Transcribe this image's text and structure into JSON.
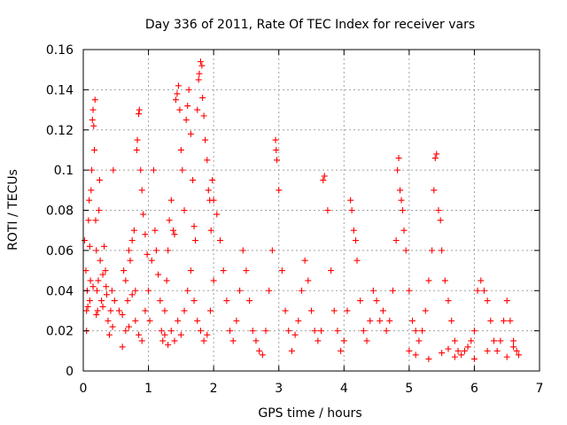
{
  "chart_data": {
    "type": "scatter",
    "title": "Day 336 of 2011, Rate Of TEC Index for receiver vars",
    "xlabel": "GPS time / hours",
    "ylabel": "ROTI / TECUs",
    "xlim": [
      0,
      7
    ],
    "ylim": [
      0,
      0.16
    ],
    "xticks": [
      0,
      1,
      2,
      3,
      4,
      5,
      6,
      7
    ],
    "xtick_labels": [
      "0",
      "1",
      "2",
      "3",
      "4",
      "5",
      "6",
      "7"
    ],
    "yticks": [
      0,
      0.02,
      0.04,
      0.06,
      0.08,
      0.1,
      0.12,
      0.14,
      0.16
    ],
    "ytick_labels": [
      "0",
      "0.02",
      "0.04",
      "0.06",
      "0.08",
      "0.1",
      "0.12",
      "0.14",
      "0.16"
    ],
    "grid": true,
    "marker": "plus",
    "color": "#ff0000",
    "series": [
      {
        "name": "",
        "points": [
          [
            0.02,
            0.065
          ],
          [
            0.04,
            0.05
          ],
          [
            0.05,
            0.02
          ],
          [
            0.06,
            0.04
          ],
          [
            0.07,
            0.032
          ],
          [
            0.08,
            0.075
          ],
          [
            0.09,
            0.085
          ],
          [
            0.1,
            0.062
          ],
          [
            0.11,
            0.045
          ],
          [
            0.12,
            0.09
          ],
          [
            0.13,
            0.1
          ],
          [
            0.14,
            0.125
          ],
          [
            0.15,
            0.13
          ],
          [
            0.16,
            0.122
          ],
          [
            0.17,
            0.11
          ],
          [
            0.18,
            0.135
          ],
          [
            0.19,
            0.075
          ],
          [
            0.2,
            0.06
          ],
          [
            0.21,
            0.04
          ],
          [
            0.22,
            0.03
          ],
          [
            0.23,
            0.045
          ],
          [
            0.24,
            0.08
          ],
          [
            0.25,
            0.095
          ],
          [
            0.26,
            0.055
          ],
          [
            0.28,
            0.035
          ],
          [
            0.3,
            0.048
          ],
          [
            0.32,
            0.062
          ],
          [
            0.34,
            0.05
          ],
          [
            0.36,
            0.038
          ],
          [
            0.38,
            0.025
          ],
          [
            0.4,
            0.018
          ],
          [
            0.42,
            0.03
          ],
          [
            0.44,
            0.04
          ],
          [
            0.46,
            0.1
          ],
          [
            0.48,
            0.035
          ],
          [
            0.05,
            0.03
          ],
          [
            0.1,
            0.035
          ],
          [
            0.15,
            0.042
          ],
          [
            0.2,
            0.028
          ],
          [
            0.3,
            0.032
          ],
          [
            0.35,
            0.042
          ],
          [
            0.45,
            0.022
          ],
          [
            0.55,
            0.03
          ],
          [
            0.6,
            0.028
          ],
          [
            0.62,
            0.05
          ],
          [
            0.65,
            0.045
          ],
          [
            0.68,
            0.035
          ],
          [
            0.7,
            0.06
          ],
          [
            0.72,
            0.055
          ],
          [
            0.75,
            0.065
          ],
          [
            0.78,
            0.07
          ],
          [
            0.8,
            0.04
          ],
          [
            0.82,
            0.11
          ],
          [
            0.83,
            0.115
          ],
          [
            0.85,
            0.128
          ],
          [
            0.86,
            0.13
          ],
          [
            0.88,
            0.1
          ],
          [
            0.9,
            0.09
          ],
          [
            0.92,
            0.078
          ],
          [
            0.95,
            0.068
          ],
          [
            0.98,
            0.058
          ],
          [
            0.6,
            0.012
          ],
          [
            0.65,
            0.02
          ],
          [
            0.7,
            0.022
          ],
          [
            0.75,
            0.038
          ],
          [
            0.8,
            0.025
          ],
          [
            0.85,
            0.018
          ],
          [
            0.9,
            0.015
          ],
          [
            0.95,
            0.03
          ],
          [
            1.0,
            0.04
          ],
          [
            1.02,
            0.025
          ],
          [
            1.05,
            0.055
          ],
          [
            1.08,
            0.1
          ],
          [
            1.1,
            0.07
          ],
          [
            1.12,
            0.06
          ],
          [
            1.15,
            0.048
          ],
          [
            1.18,
            0.035
          ],
          [
            1.2,
            0.02
          ],
          [
            1.22,
            0.015
          ],
          [
            1.25,
            0.03
          ],
          [
            1.28,
            0.045
          ],
          [
            1.3,
            0.06
          ],
          [
            1.32,
            0.075
          ],
          [
            1.35,
            0.085
          ],
          [
            1.38,
            0.07
          ],
          [
            1.4,
            0.068
          ],
          [
            1.42,
            0.135
          ],
          [
            1.44,
            0.138
          ],
          [
            1.46,
            0.142
          ],
          [
            1.48,
            0.13
          ],
          [
            1.5,
            0.11
          ],
          [
            1.52,
            0.1
          ],
          [
            1.55,
            0.08
          ],
          [
            1.58,
            0.125
          ],
          [
            1.6,
            0.132
          ],
          [
            1.62,
            0.14
          ],
          [
            1.65,
            0.118
          ],
          [
            1.68,
            0.095
          ],
          [
            1.7,
            0.072
          ],
          [
            1.72,
            0.065
          ],
          [
            1.75,
            0.13
          ],
          [
            1.77,
            0.145
          ],
          [
            1.78,
            0.148
          ],
          [
            1.8,
            0.154
          ],
          [
            1.82,
            0.152
          ],
          [
            1.83,
            0.136
          ],
          [
            1.85,
            0.127
          ],
          [
            1.87,
            0.115
          ],
          [
            1.9,
            0.105
          ],
          [
            1.92,
            0.09
          ],
          [
            1.94,
            0.085
          ],
          [
            1.96,
            0.07
          ],
          [
            1.98,
            0.095
          ],
          [
            2.0,
            0.085
          ],
          [
            1.25,
            0.018
          ],
          [
            1.3,
            0.013
          ],
          [
            1.35,
            0.02
          ],
          [
            1.4,
            0.015
          ],
          [
            1.45,
            0.025
          ],
          [
            1.5,
            0.018
          ],
          [
            1.55,
            0.03
          ],
          [
            1.6,
            0.04
          ],
          [
            1.65,
            0.05
          ],
          [
            1.7,
            0.035
          ],
          [
            1.75,
            0.025
          ],
          [
            1.8,
            0.02
          ],
          [
            1.85,
            0.015
          ],
          [
            1.9,
            0.018
          ],
          [
            1.95,
            0.03
          ],
          [
            2.0,
            0.045
          ],
          [
            2.05,
            0.078
          ],
          [
            2.1,
            0.065
          ],
          [
            2.15,
            0.05
          ],
          [
            2.2,
            0.035
          ],
          [
            2.25,
            0.02
          ],
          [
            2.3,
            0.015
          ],
          [
            2.35,
            0.025
          ],
          [
            2.4,
            0.04
          ],
          [
            2.45,
            0.06
          ],
          [
            2.5,
            0.05
          ],
          [
            2.55,
            0.035
          ],
          [
            2.6,
            0.02
          ],
          [
            2.65,
            0.015
          ],
          [
            2.7,
            0.01
          ],
          [
            2.75,
            0.008
          ],
          [
            2.8,
            0.02
          ],
          [
            2.85,
            0.04
          ],
          [
            2.9,
            0.06
          ],
          [
            2.95,
            0.115
          ],
          [
            2.96,
            0.11
          ],
          [
            2.97,
            0.105
          ],
          [
            3.0,
            0.09
          ],
          [
            3.05,
            0.05
          ],
          [
            3.1,
            0.03
          ],
          [
            3.15,
            0.02
          ],
          [
            3.2,
            0.01
          ],
          [
            3.25,
            0.018
          ],
          [
            3.3,
            0.025
          ],
          [
            3.35,
            0.04
          ],
          [
            3.4,
            0.055
          ],
          [
            3.45,
            0.045
          ],
          [
            3.5,
            0.03
          ],
          [
            3.55,
            0.02
          ],
          [
            3.6,
            0.015
          ],
          [
            3.65,
            0.02
          ],
          [
            3.68,
            0.095
          ],
          [
            3.7,
            0.097
          ],
          [
            3.75,
            0.08
          ],
          [
            3.8,
            0.05
          ],
          [
            3.85,
            0.03
          ],
          [
            3.9,
            0.02
          ],
          [
            3.95,
            0.01
          ],
          [
            4.0,
            0.015
          ],
          [
            4.05,
            0.03
          ],
          [
            4.1,
            0.085
          ],
          [
            4.12,
            0.08
          ],
          [
            4.15,
            0.07
          ],
          [
            4.18,
            0.065
          ],
          [
            4.2,
            0.055
          ],
          [
            4.25,
            0.035
          ],
          [
            4.3,
            0.02
          ],
          [
            4.35,
            0.015
          ],
          [
            4.4,
            0.025
          ],
          [
            4.45,
            0.04
          ],
          [
            4.5,
            0.035
          ],
          [
            4.55,
            0.025
          ],
          [
            4.6,
            0.03
          ],
          [
            4.65,
            0.02
          ],
          [
            4.7,
            0.025
          ],
          [
            4.75,
            0.04
          ],
          [
            4.8,
            0.065
          ],
          [
            4.82,
            0.1
          ],
          [
            4.84,
            0.106
          ],
          [
            4.86,
            0.09
          ],
          [
            4.88,
            0.085
          ],
          [
            4.9,
            0.08
          ],
          [
            4.92,
            0.07
          ],
          [
            4.95,
            0.06
          ],
          [
            5.0,
            0.04
          ],
          [
            5.05,
            0.025
          ],
          [
            5.1,
            0.02
          ],
          [
            5.15,
            0.015
          ],
          [
            5.2,
            0.02
          ],
          [
            5.25,
            0.03
          ],
          [
            5.3,
            0.045
          ],
          [
            5.35,
            0.06
          ],
          [
            5.38,
            0.09
          ],
          [
            5.4,
            0.106
          ],
          [
            5.42,
            0.108
          ],
          [
            5.45,
            0.08
          ],
          [
            5.48,
            0.075
          ],
          [
            5.5,
            0.06
          ],
          [
            5.55,
            0.045
          ],
          [
            5.6,
            0.035
          ],
          [
            5.65,
            0.025
          ],
          [
            5.7,
            0.015
          ],
          [
            5.75,
            0.01
          ],
          [
            5.8,
            0.008
          ],
          [
            5.85,
            0.01
          ],
          [
            5.9,
            0.012
          ],
          [
            5.95,
            0.015
          ],
          [
            6.0,
            0.02
          ],
          [
            6.05,
            0.04
          ],
          [
            6.1,
            0.045
          ],
          [
            6.15,
            0.04
          ],
          [
            6.2,
            0.035
          ],
          [
            6.25,
            0.025
          ],
          [
            6.3,
            0.015
          ],
          [
            6.35,
            0.01
          ],
          [
            6.4,
            0.015
          ],
          [
            6.45,
            0.025
          ],
          [
            6.5,
            0.035
          ],
          [
            6.55,
            0.025
          ],
          [
            6.6,
            0.015
          ],
          [
            6.65,
            0.01
          ],
          [
            6.68,
            0.008
          ],
          [
            5.0,
            0.01
          ],
          [
            5.1,
            0.008
          ],
          [
            5.3,
            0.006
          ],
          [
            5.5,
            0.009
          ],
          [
            5.6,
            0.011
          ],
          [
            5.7,
            0.007
          ],
          [
            6.0,
            0.006
          ],
          [
            6.2,
            0.01
          ],
          [
            6.5,
            0.007
          ],
          [
            6.6,
            0.012
          ]
        ]
      }
    ]
  }
}
